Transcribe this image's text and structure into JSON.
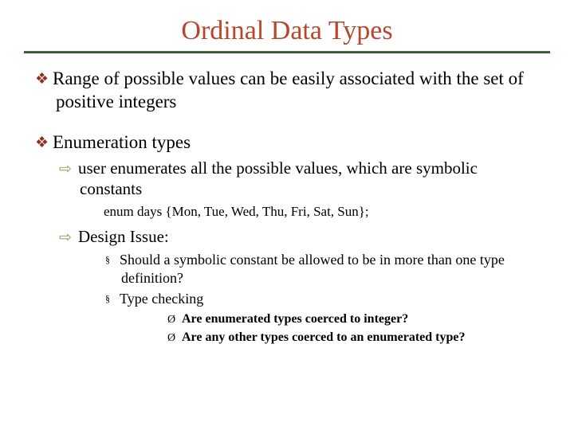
{
  "title": "Ordinal Data Types",
  "colors": {
    "title": "#b9452b",
    "underline": "#47693a",
    "diamond": "#8a3520",
    "arrow": "#9a9a66",
    "text": "#000000",
    "background": "#ffffff"
  },
  "bullets": {
    "diamond": "❖",
    "arrow": "⇨",
    "square": "§",
    "triangle": "Ø"
  },
  "items": [
    {
      "text": "Range of possible values can be easily associated with the set of positive integers"
    },
    {
      "text": "Enumeration types",
      "sub": [
        {
          "text": "user enumerates all the possible values, which are symbolic constants",
          "code": "enum days {Mon, Tue, Wed, Thu, Fri, Sat, Sun};"
        },
        {
          "text": "Design Issue:",
          "sub": [
            {
              "text": "Should a symbolic constant be allowed to be in more than one type definition?"
            },
            {
              "text": "Type checking",
              "sub": [
                {
                  "text": "Are enumerated types coerced to integer?"
                },
                {
                  "text": "Are any other types coerced to an enumerated type?"
                }
              ]
            }
          ]
        }
      ]
    }
  ]
}
